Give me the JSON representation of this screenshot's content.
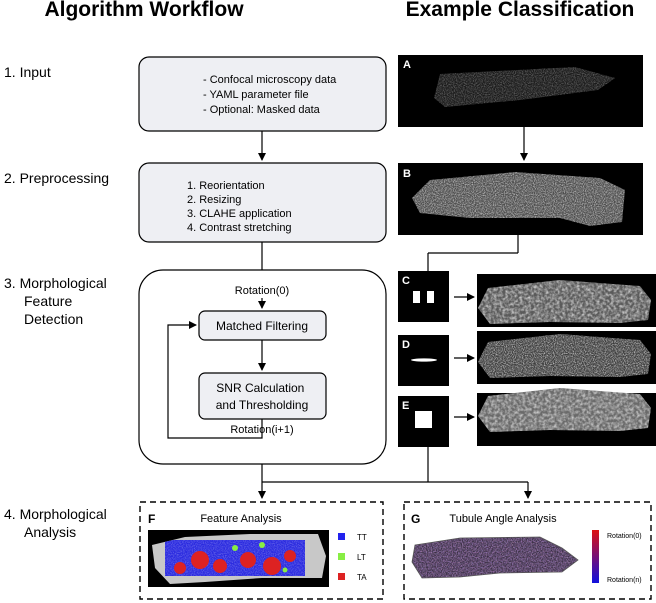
{
  "headers": {
    "left": "Algorithm Workflow",
    "right": "Example Classification"
  },
  "steps": [
    {
      "label": "1. Input"
    },
    {
      "label": "2. Preprocessing"
    },
    {
      "label_lines": [
        "3. Morphological",
        "Feature",
        "Detection"
      ]
    },
    {
      "label_lines": [
        "4. Morphological",
        "Analysis"
      ]
    }
  ],
  "input_box": {
    "lines": [
      "- Confocal microscopy data",
      "- YAML parameter file",
      "- Optional: Masked data"
    ]
  },
  "preprocessing_box": {
    "lines": [
      "1.  Reorientation",
      "2.  Resizing",
      "3.  CLAHE application",
      "4.  Contrast stretching"
    ]
  },
  "detection": {
    "rotation_start": "Rotation(0)",
    "matched_filtering": "Matched Filtering",
    "snr_lines": [
      "SNR Calculation",
      "and Thresholding"
    ],
    "rotation_next": "Rotation(i+1)"
  },
  "panels": {
    "A": "A",
    "B": "B",
    "C": "C",
    "D": "D",
    "E": "E",
    "F": "F",
    "G": "G"
  },
  "feature_analysis": {
    "title": "Feature Analysis",
    "legend": [
      {
        "label": "TT",
        "color": "#2222ee"
      },
      {
        "label": "LT",
        "color": "#88ee44"
      },
      {
        "label": "TA",
        "color": "#dd2222"
      }
    ]
  },
  "tubule_analysis": {
    "title": "Tubule Angle Analysis",
    "colorbar_top": "Rotation(0)",
    "colorbar_bottom": "Rotation(n)",
    "colorbar_colors": [
      "#dd1111",
      "#1111dd"
    ]
  }
}
